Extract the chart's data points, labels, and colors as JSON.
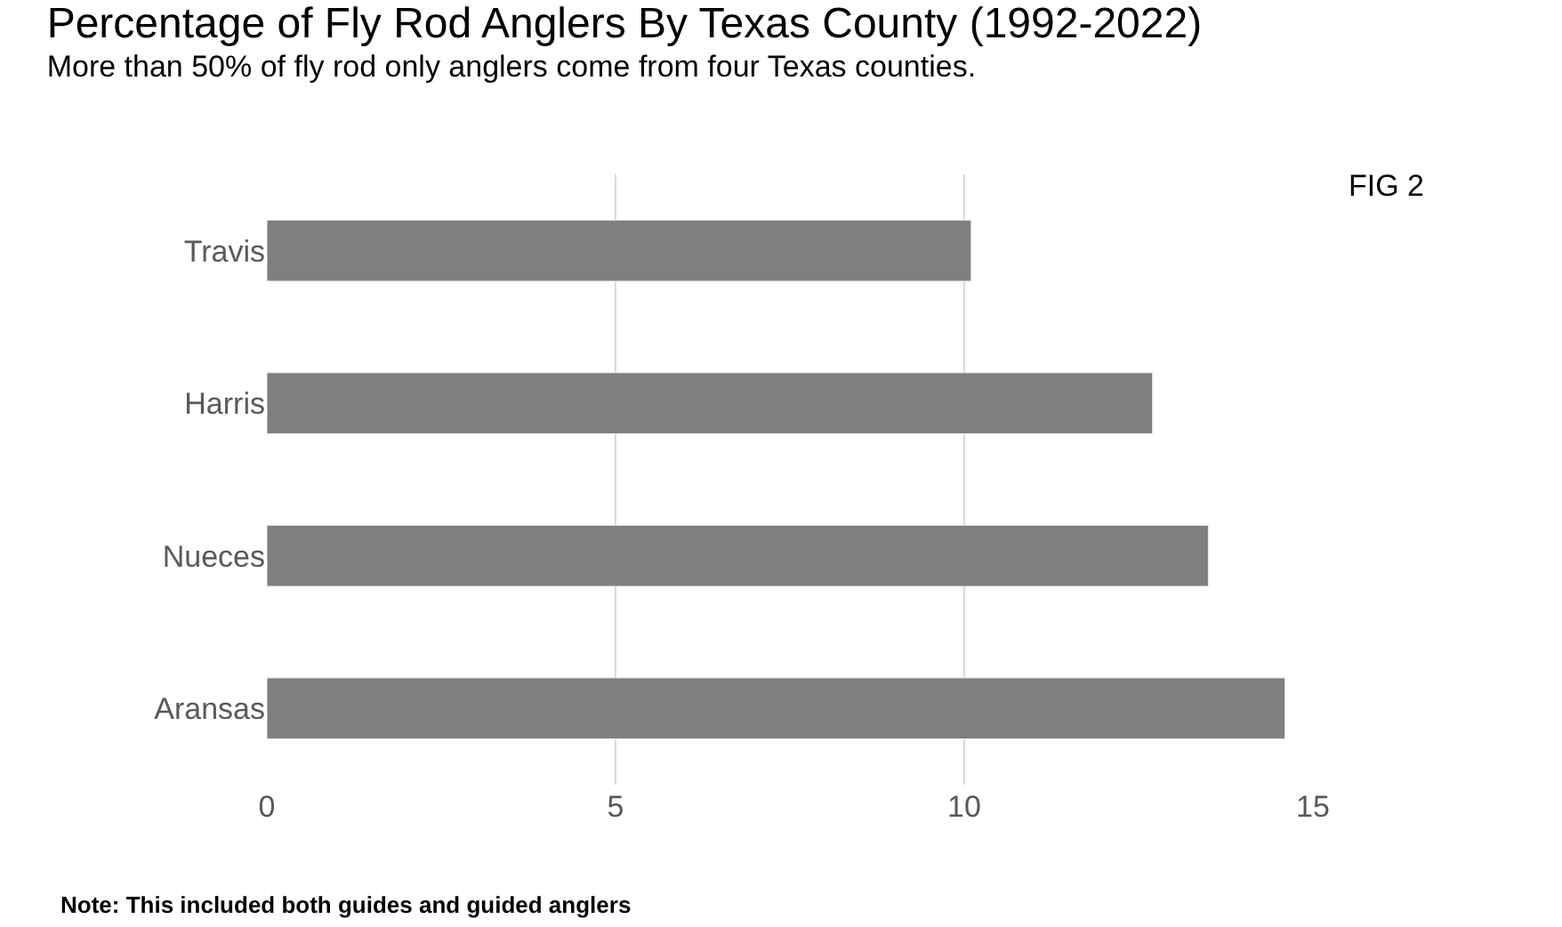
{
  "chart_data": {
    "type": "bar",
    "orientation": "horizontal",
    "title": "Percentage of Fly Rod Anglers By Texas County (1992-2022)",
    "subtitle": "More than 50% of fly rod only anglers come from four Texas counties.",
    "categories": [
      "Travis",
      "Harris",
      "Nueces",
      "Aransas"
    ],
    "values": [
      10.1,
      12.7,
      13.5,
      14.6
    ],
    "color": "#7f7f7f",
    "xlim": [
      0,
      15
    ],
    "xticks": [
      0,
      5,
      10,
      15
    ],
    "grid": "x",
    "legend": false,
    "annotations": [
      "FIG 2",
      "Note: This included both guides and guided anglers"
    ]
  }
}
